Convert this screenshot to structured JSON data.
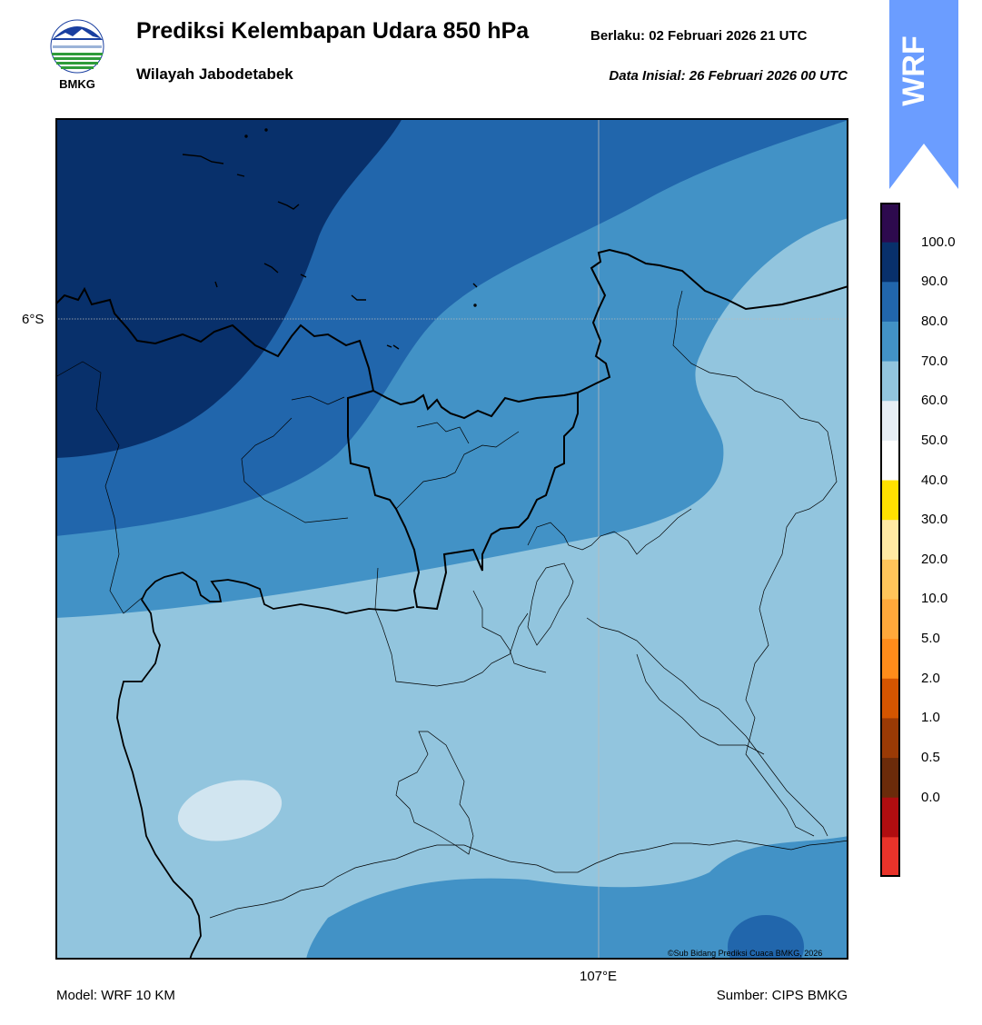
{
  "header": {
    "title": "Prediksi Kelembapan Udara 850 hPa",
    "subtitle": "Wilayah Jabodetabek",
    "valid_time": "Berlaku:  02 Februari 2026 21 UTC",
    "initial_time": "Data Inisial:  26 Februari 2026 00 UTC",
    "logo_text": "BMKG",
    "badge_text": "WRF"
  },
  "map": {
    "lat_label": "6°S",
    "lon_label": "107°E",
    "copyright": "©Sub Bidang Prediksi Cuaca BMKG, 2026",
    "field_colors": {
      "band_90_100": "#08306b",
      "band_80_90": "#2166ac",
      "band_70_80": "#4292c6",
      "band_60_70": "#92c5de",
      "band_50_60": "#d1e5f0"
    }
  },
  "colorbar": {
    "labels": [
      "100.0",
      "90.0",
      "80.0",
      "70.0",
      "60.0",
      "50.0",
      "40.0",
      "30.0",
      "20.0",
      "10.0",
      "5.0",
      "2.0",
      "1.0",
      "0.5",
      "0.0"
    ],
    "colors_top_to_bottom": [
      "#2d0a4e",
      "#08306b",
      "#2166ac",
      "#4292c6",
      "#92c5de",
      "#e6eef5",
      "#ffffff",
      "#ffe100",
      "#ffe9a3",
      "#ffc55a",
      "#ffa83a",
      "#ff8c1a",
      "#d45500",
      "#9a3a05",
      "#6b2b0a",
      "#b00d10",
      "#e8332a"
    ]
  },
  "footer": {
    "model": "Model: WRF 10 KM",
    "source": "Sumber: CIPS BMKG"
  }
}
